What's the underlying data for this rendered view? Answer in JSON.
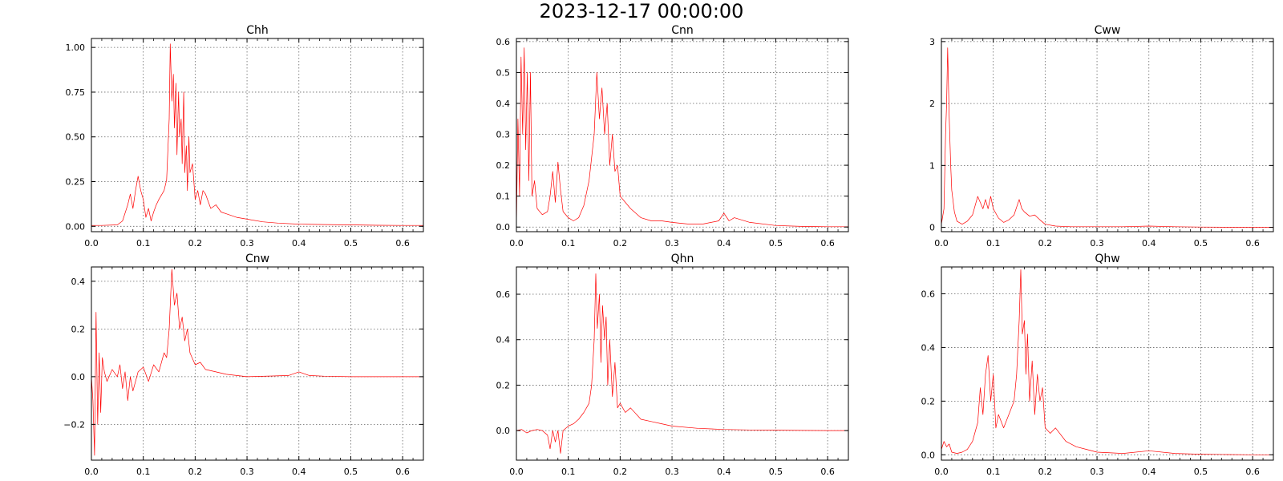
{
  "figure": {
    "title": "2023-12-17 00:00:00",
    "line_color": "#ff0000"
  },
  "chart_data": [
    {
      "type": "line",
      "title": "Chh",
      "xlabel": "",
      "ylabel": "",
      "grid": true,
      "xlim": [
        0,
        0.64
      ],
      "ylim": [
        -0.03,
        1.05
      ],
      "xticks": [
        0.0,
        0.1,
        0.2,
        0.3,
        0.4,
        0.5,
        0.6
      ],
      "xtick_labels": [
        "0.0",
        "0.1",
        "0.2",
        "0.3",
        "0.4",
        "0.5",
        "0.6"
      ],
      "yticks": [
        0.0,
        0.25,
        0.5,
        0.75,
        1.0
      ],
      "ytick_labels": [
        "0.00",
        "0.25",
        "0.50",
        "0.75",
        "1.00"
      ],
      "series": [
        {
          "x": [
            0,
            0.02,
            0.05,
            0.06,
            0.07,
            0.075,
            0.08,
            0.085,
            0.09,
            0.095,
            0.1,
            0.105,
            0.11,
            0.115,
            0.12,
            0.125,
            0.13,
            0.14,
            0.145,
            0.15,
            0.152,
            0.155,
            0.158,
            0.16,
            0.163,
            0.165,
            0.168,
            0.17,
            0.173,
            0.175,
            0.178,
            0.18,
            0.183,
            0.185,
            0.188,
            0.19,
            0.195,
            0.2,
            0.205,
            0.21,
            0.215,
            0.22,
            0.23,
            0.24,
            0.25,
            0.26,
            0.28,
            0.3,
            0.33,
            0.36,
            0.4,
            0.45,
            0.5,
            0.55,
            0.6,
            0.64
          ],
          "y": [
            0.005,
            0.005,
            0.008,
            0.03,
            0.12,
            0.18,
            0.1,
            0.2,
            0.28,
            0.2,
            0.15,
            0.05,
            0.1,
            0.03,
            0.08,
            0.12,
            0.15,
            0.2,
            0.26,
            0.6,
            1.02,
            0.7,
            0.85,
            0.55,
            0.8,
            0.4,
            0.75,
            0.5,
            0.6,
            0.35,
            0.75,
            0.3,
            0.45,
            0.2,
            0.5,
            0.3,
            0.35,
            0.15,
            0.2,
            0.12,
            0.2,
            0.18,
            0.1,
            0.12,
            0.08,
            0.07,
            0.05,
            0.04,
            0.025,
            0.018,
            0.012,
            0.01,
            0.008,
            0.006,
            0.005,
            0.005
          ]
        }
      ]
    },
    {
      "type": "line",
      "title": "Cnn",
      "xlabel": "",
      "ylabel": "",
      "grid": true,
      "xlim": [
        0,
        0.64
      ],
      "ylim": [
        -0.015,
        0.61
      ],
      "xticks": [
        0.0,
        0.1,
        0.2,
        0.3,
        0.4,
        0.5,
        0.6
      ],
      "xtick_labels": [
        "0.0",
        "0.1",
        "0.2",
        "0.3",
        "0.4",
        "0.5",
        "0.6"
      ],
      "yticks": [
        0.0,
        0.1,
        0.2,
        0.3,
        0.4,
        0.5,
        0.6
      ],
      "ytick_labels": [
        "0.0",
        "0.1",
        "0.2",
        "0.3",
        "0.4",
        "0.5",
        "0.6"
      ],
      "series": [
        {
          "x": [
            0,
            0.003,
            0.006,
            0.009,
            0.012,
            0.015,
            0.018,
            0.021,
            0.024,
            0.027,
            0.03,
            0.035,
            0.04,
            0.05,
            0.06,
            0.065,
            0.07,
            0.075,
            0.08,
            0.085,
            0.09,
            0.1,
            0.11,
            0.12,
            0.13,
            0.14,
            0.15,
            0.155,
            0.16,
            0.165,
            0.17,
            0.175,
            0.18,
            0.185,
            0.19,
            0.195,
            0.2,
            0.21,
            0.22,
            0.24,
            0.26,
            0.28,
            0.3,
            0.33,
            0.36,
            0.39,
            0.4,
            0.41,
            0.42,
            0.45,
            0.5,
            0.55,
            0.6,
            0.64
          ],
          "y": [
            0.0,
            0.35,
            0.1,
            0.55,
            0.3,
            0.58,
            0.25,
            0.5,
            0.15,
            0.5,
            0.1,
            0.15,
            0.06,
            0.04,
            0.05,
            0.1,
            0.18,
            0.08,
            0.21,
            0.12,
            0.05,
            0.03,
            0.02,
            0.03,
            0.07,
            0.15,
            0.3,
            0.5,
            0.35,
            0.45,
            0.3,
            0.4,
            0.2,
            0.3,
            0.18,
            0.2,
            0.1,
            0.08,
            0.06,
            0.03,
            0.02,
            0.02,
            0.015,
            0.01,
            0.01,
            0.02,
            0.045,
            0.02,
            0.03,
            0.015,
            0.005,
            0.002,
            0.001,
            0.001
          ]
        }
      ]
    },
    {
      "type": "line",
      "title": "Cww",
      "xlabel": "",
      "ylabel": "",
      "grid": true,
      "xlim": [
        0,
        0.64
      ],
      "ylim": [
        -0.07,
        3.05
      ],
      "xticks": [
        0.0,
        0.1,
        0.2,
        0.3,
        0.4,
        0.5,
        0.6
      ],
      "xtick_labels": [
        "0.0",
        "0.1",
        "0.2",
        "0.3",
        "0.4",
        "0.5",
        "0.6"
      ],
      "yticks": [
        0,
        1,
        2,
        3
      ],
      "ytick_labels": [
        "0",
        "1",
        "2",
        "3"
      ],
      "series": [
        {
          "x": [
            0,
            0.005,
            0.008,
            0.01,
            0.012,
            0.015,
            0.018,
            0.02,
            0.025,
            0.03,
            0.04,
            0.05,
            0.06,
            0.07,
            0.08,
            0.085,
            0.09,
            0.095,
            0.1,
            0.11,
            0.12,
            0.13,
            0.14,
            0.15,
            0.155,
            0.16,
            0.17,
            0.18,
            0.19,
            0.2,
            0.22,
            0.25,
            0.3,
            0.35,
            0.4,
            0.45,
            0.5,
            0.55,
            0.6,
            0.64
          ],
          "y": [
            0.05,
            0.3,
            1.5,
            2.0,
            2.9,
            1.8,
            1.0,
            0.6,
            0.25,
            0.1,
            0.05,
            0.1,
            0.2,
            0.5,
            0.3,
            0.45,
            0.3,
            0.5,
            0.3,
            0.15,
            0.08,
            0.12,
            0.2,
            0.45,
            0.3,
            0.25,
            0.18,
            0.2,
            0.12,
            0.05,
            0.02,
            0.01,
            0.01,
            0.01,
            0.02,
            0.01,
            0.005,
            0.003,
            0.002,
            0.002
          ]
        }
      ]
    },
    {
      "type": "line",
      "title": "Cnw",
      "xlabel": "",
      "ylabel": "",
      "grid": true,
      "xlim": [
        0,
        0.64
      ],
      "ylim": [
        -0.35,
        0.46
      ],
      "xticks": [
        0.0,
        0.1,
        0.2,
        0.3,
        0.4,
        0.5,
        0.6
      ],
      "xtick_labels": [
        "0.0",
        "0.1",
        "0.2",
        "0.3",
        "0.4",
        "0.5",
        "0.6"
      ],
      "yticks": [
        -0.2,
        0.0,
        0.2,
        0.4
      ],
      "ytick_labels": [
        "−0.2",
        "0.0",
        "0.2",
        "0.4"
      ],
      "series": [
        {
          "x": [
            0,
            0.003,
            0.006,
            0.009,
            0.012,
            0.015,
            0.018,
            0.021,
            0.025,
            0.03,
            0.04,
            0.05,
            0.055,
            0.06,
            0.065,
            0.07,
            0.075,
            0.08,
            0.09,
            0.1,
            0.11,
            0.12,
            0.13,
            0.14,
            0.145,
            0.15,
            0.155,
            0.16,
            0.165,
            0.17,
            0.175,
            0.18,
            0.185,
            0.19,
            0.2,
            0.21,
            0.22,
            0.24,
            0.26,
            0.28,
            0.3,
            0.35,
            0.38,
            0.4,
            0.42,
            0.45,
            0.5,
            0.55,
            0.6,
            0.64
          ],
          "y": [
            0.0,
            -0.1,
            -0.33,
            0.27,
            -0.2,
            0.1,
            -0.15,
            0.08,
            0.02,
            -0.02,
            0.03,
            0.0,
            0.05,
            -0.05,
            0.02,
            -0.1,
            0.0,
            -0.06,
            0.02,
            0.04,
            -0.02,
            0.05,
            0.02,
            0.1,
            0.08,
            0.2,
            0.45,
            0.3,
            0.35,
            0.2,
            0.25,
            0.15,
            0.2,
            0.1,
            0.05,
            0.06,
            0.03,
            0.02,
            0.01,
            0.005,
            0.0,
            0.003,
            0.005,
            0.02,
            0.005,
            0.002,
            0.0,
            0.0,
            0.0,
            0.0
          ]
        }
      ]
    },
    {
      "type": "line",
      "title": "Qhn",
      "xlabel": "",
      "ylabel": "",
      "grid": true,
      "xlim": [
        0,
        0.64
      ],
      "ylim": [
        -0.13,
        0.72
      ],
      "xticks": [
        0.0,
        0.1,
        0.2,
        0.3,
        0.4,
        0.5,
        0.6
      ],
      "xtick_labels": [
        "0.0",
        "0.1",
        "0.2",
        "0.3",
        "0.4",
        "0.5",
        "0.6"
      ],
      "yticks": [
        0.0,
        0.2,
        0.4,
        0.6
      ],
      "ytick_labels": [
        "0.0",
        "0.2",
        "0.4",
        "0.6"
      ],
      "series": [
        {
          "x": [
            0,
            0.01,
            0.02,
            0.03,
            0.04,
            0.05,
            0.06,
            0.065,
            0.07,
            0.075,
            0.08,
            0.085,
            0.09,
            0.1,
            0.11,
            0.12,
            0.13,
            0.14,
            0.145,
            0.15,
            0.153,
            0.156,
            0.16,
            0.163,
            0.166,
            0.17,
            0.173,
            0.176,
            0.18,
            0.185,
            0.19,
            0.195,
            0.2,
            0.21,
            0.22,
            0.24,
            0.26,
            0.28,
            0.3,
            0.35,
            0.4,
            0.45,
            0.5,
            0.55,
            0.6,
            0.64
          ],
          "y": [
            0.0,
            0.005,
            -0.01,
            0.0,
            0.005,
            0.0,
            -0.02,
            -0.08,
            0.0,
            -0.05,
            0.0,
            -0.1,
            0.0,
            0.02,
            0.03,
            0.05,
            0.08,
            0.12,
            0.2,
            0.4,
            0.69,
            0.45,
            0.6,
            0.3,
            0.55,
            0.4,
            0.5,
            0.2,
            0.4,
            0.15,
            0.3,
            0.1,
            0.12,
            0.08,
            0.1,
            0.05,
            0.04,
            0.03,
            0.02,
            0.01,
            0.005,
            0.003,
            0.002,
            0.001,
            0.0,
            0.0
          ]
        }
      ]
    },
    {
      "type": "line",
      "title": "Qhw",
      "xlabel": "",
      "ylabel": "",
      "grid": true,
      "xlim": [
        0,
        0.64
      ],
      "ylim": [
        -0.02,
        0.7
      ],
      "xticks": [
        0.0,
        0.1,
        0.2,
        0.3,
        0.4,
        0.5,
        0.6
      ],
      "xtick_labels": [
        "0.0",
        "0.1",
        "0.2",
        "0.3",
        "0.4",
        "0.5",
        "0.6"
      ],
      "yticks": [
        0.0,
        0.2,
        0.4,
        0.6
      ],
      "ytick_labels": [
        "0.0",
        "0.2",
        "0.4",
        "0.6"
      ],
      "series": [
        {
          "x": [
            0,
            0.005,
            0.01,
            0.015,
            0.02,
            0.03,
            0.04,
            0.05,
            0.06,
            0.07,
            0.075,
            0.08,
            0.085,
            0.09,
            0.095,
            0.1,
            0.105,
            0.11,
            0.12,
            0.13,
            0.14,
            0.145,
            0.15,
            0.153,
            0.156,
            0.16,
            0.163,
            0.166,
            0.17,
            0.175,
            0.18,
            0.185,
            0.19,
            0.195,
            0.2,
            0.21,
            0.22,
            0.24,
            0.26,
            0.28,
            0.3,
            0.35,
            0.4,
            0.45,
            0.5,
            0.55,
            0.6,
            0.64
          ],
          "y": [
            0.02,
            0.05,
            0.03,
            0.04,
            0.01,
            0.005,
            0.01,
            0.02,
            0.05,
            0.12,
            0.25,
            0.15,
            0.3,
            0.37,
            0.2,
            0.3,
            0.1,
            0.15,
            0.1,
            0.15,
            0.2,
            0.3,
            0.5,
            0.69,
            0.45,
            0.5,
            0.3,
            0.45,
            0.2,
            0.35,
            0.15,
            0.3,
            0.2,
            0.25,
            0.1,
            0.08,
            0.1,
            0.05,
            0.03,
            0.02,
            0.01,
            0.005,
            0.015,
            0.005,
            0.002,
            0.001,
            0.0,
            0.0
          ]
        }
      ]
    }
  ]
}
